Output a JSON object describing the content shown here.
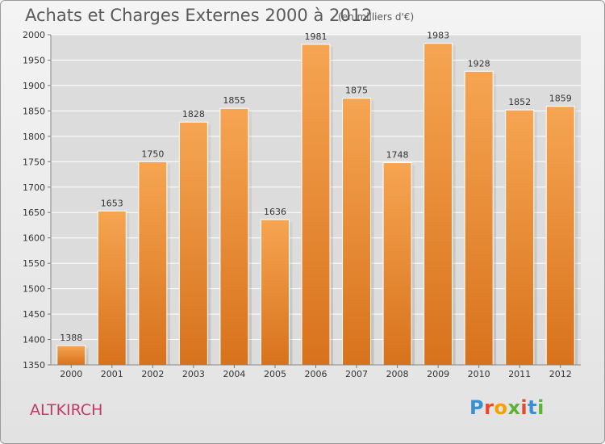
{
  "title": "Achats et Charges Externes 2000 à 2012",
  "subtitle": "(en milliers d'€)",
  "town": "ALTKIRCH",
  "brand": {
    "letters": [
      "P",
      "r",
      "o",
      "x",
      "i",
      "t",
      "i"
    ],
    "colors": [
      "#3a8fd0",
      "#e8492c",
      "#f2a200",
      "#5fb13a",
      "#e8492c",
      "#3a8fd0",
      "#5fb13a"
    ]
  },
  "colors": {
    "bar_top": "#f6a552",
    "bar_bottom": "#d8721c",
    "grid": "#ffffff",
    "axis_text": "#333333"
  },
  "chart_data": {
    "type": "bar",
    "title": "Achats et Charges Externes 2000 à 2012",
    "subtitle": "(en milliers d'€)",
    "categories": [
      "2000",
      "2001",
      "2002",
      "2003",
      "2004",
      "2005",
      "2006",
      "2007",
      "2008",
      "2009",
      "2010",
      "2011",
      "2012"
    ],
    "values": [
      1388,
      1653,
      1750,
      1828,
      1855,
      1636,
      1981,
      1875,
      1748,
      1983,
      1928,
      1852,
      1859
    ],
    "ylim": [
      1350,
      2000
    ],
    "yticks": [
      1350,
      1400,
      1450,
      1500,
      1550,
      1600,
      1650,
      1700,
      1750,
      1800,
      1850,
      1900,
      1950,
      2000
    ],
    "grid": true
  }
}
